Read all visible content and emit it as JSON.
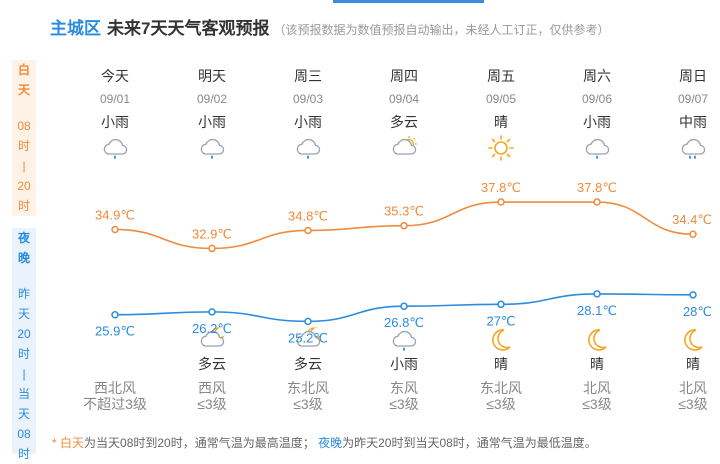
{
  "header": {
    "district": "主城区",
    "title": "未来7天天气客观预报",
    "note": "（该预报数据为数值预报自动输出，未经人工订正，仅供参考）"
  },
  "side": {
    "day": [
      "白",
      "天",
      "",
      "08",
      "时",
      "|",
      "20",
      "时"
    ],
    "night": [
      "夜",
      "晚",
      "",
      "昨",
      "天",
      "20",
      "时",
      "|",
      "当",
      "天",
      "08",
      "时"
    ]
  },
  "days": [
    {
      "name": "今天",
      "date": "09/01",
      "day_cond": "小雨",
      "day_icon": "light-rain-icon",
      "night_cond": "",
      "night_icon": "",
      "wind_dir": "西北风",
      "wind_level": "不超过3级"
    },
    {
      "name": "明天",
      "date": "09/02",
      "day_cond": "小雨",
      "day_icon": "light-rain-icon",
      "night_cond": "多云",
      "night_icon": "moon-cloudy-icon",
      "wind_dir": "西风",
      "wind_level": "≤3级"
    },
    {
      "name": "周三",
      "date": "09/03",
      "day_cond": "小雨",
      "day_icon": "light-rain-icon",
      "night_cond": "多云",
      "night_icon": "moon-cloudy-icon",
      "wind_dir": "东北风",
      "wind_level": "≤3级"
    },
    {
      "name": "周四",
      "date": "09/04",
      "day_cond": "多云",
      "day_icon": "partly-cloudy-icon",
      "night_cond": "小雨",
      "night_icon": "light-rain-icon",
      "wind_dir": "东风",
      "wind_level": "≤3级"
    },
    {
      "name": "周五",
      "date": "09/05",
      "day_cond": "晴",
      "day_icon": "sun-icon",
      "night_cond": "晴",
      "night_icon": "moon-icon",
      "wind_dir": "东北风",
      "wind_level": "≤3级"
    },
    {
      "name": "周六",
      "date": "09/06",
      "day_cond": "小雨",
      "day_icon": "light-rain-icon",
      "night_cond": "晴",
      "night_icon": "moon-icon",
      "wind_dir": "北风",
      "wind_level": "≤3级"
    },
    {
      "name": "周日",
      "date": "09/07",
      "day_cond": "中雨",
      "day_icon": "moderate-rain-icon",
      "night_cond": "晴",
      "night_icon": "moon-icon",
      "wind_dir": "北风",
      "wind_level": "≤3级"
    }
  ],
  "chart_data": {
    "type": "line",
    "x": [
      "09/01",
      "09/02",
      "09/03",
      "09/04",
      "09/05",
      "09/06",
      "09/07"
    ],
    "series": [
      {
        "values": [
          34.9,
          32.9,
          34.8,
          35.3,
          37.8,
          37.8,
          34.4
        ],
        "labels": [
          "34.9℃",
          "32.9℃",
          "34.8℃",
          "35.3℃",
          "37.8℃",
          "37.8℃",
          "34.4℃"
        ]
      },
      {
        "values": [
          25.9,
          26.2,
          25.2,
          26.8,
          27,
          28.1,
          28
        ],
        "labels": [
          "25.9℃",
          "26.2℃",
          "25.2℃",
          "26.8℃",
          "27℃",
          "28.1℃",
          "28℃"
        ]
      }
    ]
  },
  "colors": {
    "high": "#f08a3c",
    "low": "#2a8be0",
    "accent": "#3b8de0"
  },
  "footnote": {
    "star": "*",
    "day_term": "白天",
    "day_text": "为当天08时到20时，通常气温为最高温度；",
    "night_term": "夜晚",
    "night_text": "为昨天20时到当天08时，通常气温为最低温度。"
  }
}
